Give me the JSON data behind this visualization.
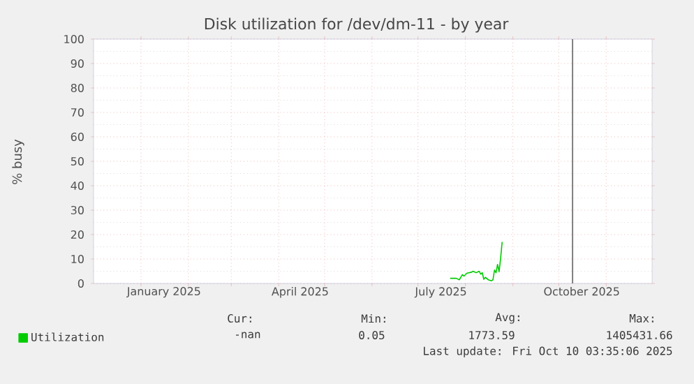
{
  "chart_data": {
    "type": "line",
    "title": "Disk utilization for /dev/dm-11 - by year",
    "ylabel": "% busy",
    "x": [
      "2025-07-22",
      "2025-07-26",
      "2025-07-28",
      "2025-07-30",
      "2025-07-31",
      "2025-08-02",
      "2025-08-05",
      "2025-08-06",
      "2025-08-08",
      "2025-08-10",
      "2025-08-11",
      "2025-08-12",
      "2025-08-13",
      "2025-08-14",
      "2025-08-16",
      "2025-08-18",
      "2025-08-19",
      "2025-08-20",
      "2025-08-21",
      "2025-08-22",
      "2025-08-23",
      "2025-08-24",
      "2025-08-25"
    ],
    "series": [
      {
        "name": "Utilization",
        "color": "#00cc00",
        "values": [
          2.1,
          2.1,
          1.5,
          3.6,
          3.0,
          4.2,
          4.6,
          5.0,
          4.4,
          5.0,
          3.8,
          4.4,
          1.7,
          2.5,
          1.5,
          1.1,
          1.5,
          5.5,
          4.4,
          7.8,
          4.8,
          10.3,
          17
        ]
      }
    ],
    "xlim": [
      "2024-12-01",
      "2025-12-01"
    ],
    "xticks": [
      {
        "value": "2025-01-01",
        "label": null
      },
      {
        "value": "2025-02-01",
        "label": null
      },
      {
        "value": "2025-03-01",
        "label": null
      },
      {
        "value": "2025-04-01",
        "label": null
      },
      {
        "value": "2025-05-01",
        "label": null
      },
      {
        "value": "2025-06-01",
        "label": null
      },
      {
        "value": "2025-07-01",
        "label": null
      },
      {
        "value": "2025-08-01",
        "label": null
      },
      {
        "value": "2025-09-01",
        "label": null
      },
      {
        "value": "2025-10-01",
        "label": null
      },
      {
        "value": "2025-11-01",
        "label": null
      },
      {
        "value": "2025-01-16",
        "label": "January 2025"
      },
      {
        "value": "2025-04-15",
        "label": "April 2025"
      },
      {
        "value": "2025-07-16",
        "label": "July 2025"
      },
      {
        "value": "2025-10-16",
        "label": "October 2025"
      }
    ],
    "ylim": [
      0,
      100
    ],
    "yticks": [
      0,
      10,
      20,
      30,
      40,
      50,
      60,
      70,
      80,
      90,
      100
    ],
    "ref_lines": [
      {
        "axis": "x",
        "value": "2025-10-10",
        "color": "#808080"
      }
    ],
    "grid": true,
    "legend": "bottom left",
    "annotations": [
      "Cur:",
      "Min:",
      "Avg:",
      "Max:",
      "-nan",
      "0.05",
      "1773.59",
      "1405431.66",
      "Last update: Fri Oct 10 03:35:06 2025"
    ]
  }
}
